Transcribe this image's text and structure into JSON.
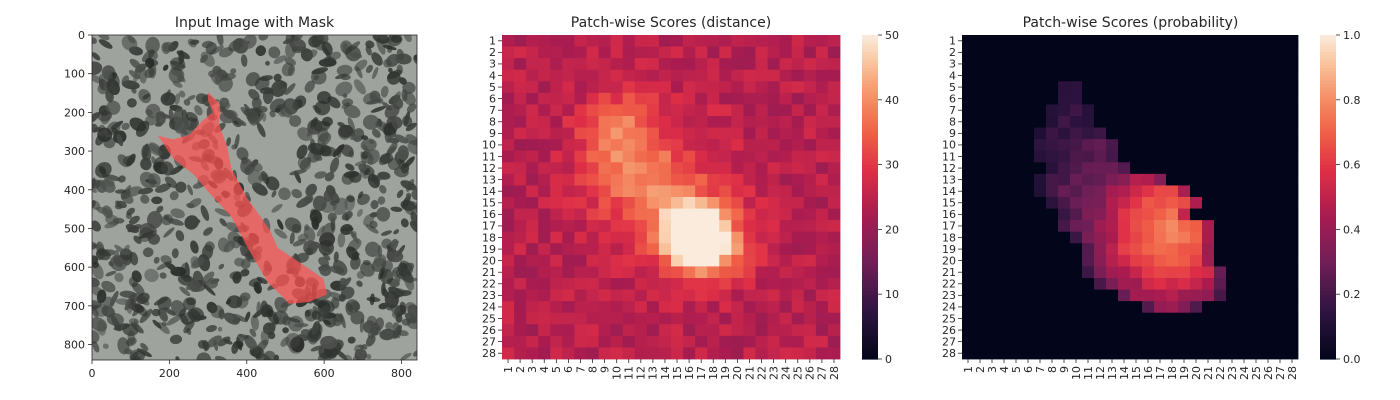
{
  "figure": {
    "panels": [
      {
        "title": "Input Image with Mask"
      },
      {
        "title": "Patch-wise Scores (distance)"
      },
      {
        "title": "Patch-wise Scores (probability)"
      }
    ]
  },
  "chart_data": [
    {
      "type": "image",
      "title": "Input Image with Mask",
      "xticks": [
        0,
        200,
        400,
        600,
        800
      ],
      "yticks": [
        0,
        100,
        200,
        300,
        400,
        500,
        600,
        700,
        800
      ],
      "xlim": [
        0,
        840
      ],
      "ylim": [
        840,
        0
      ],
      "mask_color": "#ff5050",
      "mask_polygon": [
        [
          300,
          148
        ],
        [
          330,
          178
        ],
        [
          332,
          200
        ],
        [
          328,
          228
        ],
        [
          350,
          292
        ],
        [
          360,
          345
        ],
        [
          400,
          420
        ],
        [
          432,
          465
        ],
        [
          460,
          505
        ],
        [
          480,
          550
        ],
        [
          540,
          590
        ],
        [
          598,
          630
        ],
        [
          608,
          670
        ],
        [
          560,
          690
        ],
        [
          510,
          695
        ],
        [
          488,
          672
        ],
        [
          455,
          640
        ],
        [
          408,
          560
        ],
        [
          360,
          470
        ],
        [
          305,
          410
        ],
        [
          262,
          360
        ],
        [
          210,
          320
        ],
        [
          170,
          260
        ],
        [
          210,
          270
        ],
        [
          252,
          258
        ],
        [
          285,
          222
        ],
        [
          312,
          200
        ],
        [
          300,
          170
        ]
      ],
      "texture_colors": {
        "background": "#9ea49d",
        "blotch": "#3a3d3a"
      }
    },
    {
      "type": "heatmap",
      "title": "Patch-wise Scores (distance)",
      "rows": [
        "1",
        "2",
        "3",
        "4",
        "5",
        "6",
        "7",
        "8",
        "9",
        "10",
        "11",
        "12",
        "13",
        "14",
        "15",
        "16",
        "17",
        "18",
        "19",
        "20",
        "21",
        "22",
        "23",
        "24",
        "25",
        "26",
        "27",
        "28"
      ],
      "cols": [
        "1",
        "2",
        "3",
        "4",
        "5",
        "6",
        "7",
        "8",
        "9",
        "10",
        "11",
        "12",
        "13",
        "14",
        "15",
        "16",
        "17",
        "18",
        "19",
        "20",
        "21",
        "22",
        "23",
        "24",
        "25",
        "26",
        "27",
        "28"
      ],
      "vmin": 0,
      "vmax": 50,
      "colorbar_ticks": [
        0,
        10,
        20,
        30,
        40,
        50
      ],
      "colormap": "rocket",
      "blobs": [
        {
          "center": [
            17.6,
            16.4
          ],
          "sx": 1.6,
          "sy": 1.6,
          "amp": 26
        },
        {
          "center": [
            18.8,
            17.6
          ],
          "sx": 2.2,
          "sy": 1.9,
          "amp": 22
        },
        {
          "center": [
            15.5,
            14.8
          ],
          "sx": 2.3,
          "sy": 2.6,
          "amp": 9
        },
        {
          "center": [
            11.5,
            10.8
          ],
          "sx": 2.6,
          "sy": 3.2,
          "amp": 10
        },
        {
          "center": [
            8.5,
            10.0
          ],
          "sx": 2.0,
          "sy": 2.2,
          "amp": 7
        },
        {
          "center": [
            14.5,
            14.5
          ],
          "sx": 4.8,
          "sy": 5.2,
          "amp": 5
        }
      ],
      "base": 24,
      "noise": 3.5
    },
    {
      "type": "heatmap",
      "title": "Patch-wise Scores (probability)",
      "rows": [
        "1",
        "2",
        "3",
        "4",
        "5",
        "6",
        "7",
        "8",
        "9",
        "10",
        "11",
        "12",
        "13",
        "14",
        "15",
        "16",
        "17",
        "18",
        "19",
        "20",
        "21",
        "22",
        "23",
        "24",
        "25",
        "26",
        "27",
        "28"
      ],
      "cols": [
        "1",
        "2",
        "3",
        "4",
        "5",
        "6",
        "7",
        "8",
        "9",
        "10",
        "11",
        "12",
        "13",
        "14",
        "15",
        "16",
        "17",
        "18",
        "19",
        "20",
        "21",
        "22",
        "23",
        "24",
        "25",
        "26",
        "27",
        "28"
      ],
      "vmin": 0.0,
      "vmax": 1.0,
      "colorbar_ticks": [
        "0.0",
        "0.2",
        "0.4",
        "0.6",
        "0.8",
        "1.0"
      ],
      "colormap": "rocket",
      "mask_row_ranges": {
        "5": [
          9,
          10
        ],
        "6": [
          9,
          10
        ],
        "7": [
          8,
          11
        ],
        "8": [
          8,
          11
        ],
        "9": [
          7,
          12
        ],
        "10": [
          7,
          13
        ],
        "11": [
          7,
          13
        ],
        "12": [
          8,
          14
        ],
        "13": [
          7,
          17
        ],
        "14": [
          7,
          19
        ],
        "15": [
          8,
          20
        ],
        "16": [
          9,
          19
        ],
        "17": [
          9,
          21
        ],
        "18": [
          10,
          21
        ],
        "19": [
          11,
          21
        ],
        "20": [
          11,
          21
        ],
        "21": [
          11,
          22
        ],
        "22": [
          12,
          22
        ],
        "23": [
          14,
          22
        ],
        "24": [
          16,
          20
        ]
      },
      "core_center": [
        17.5,
        17.8
      ],
      "value_range": [
        0.6,
        0.8
      ]
    }
  ]
}
